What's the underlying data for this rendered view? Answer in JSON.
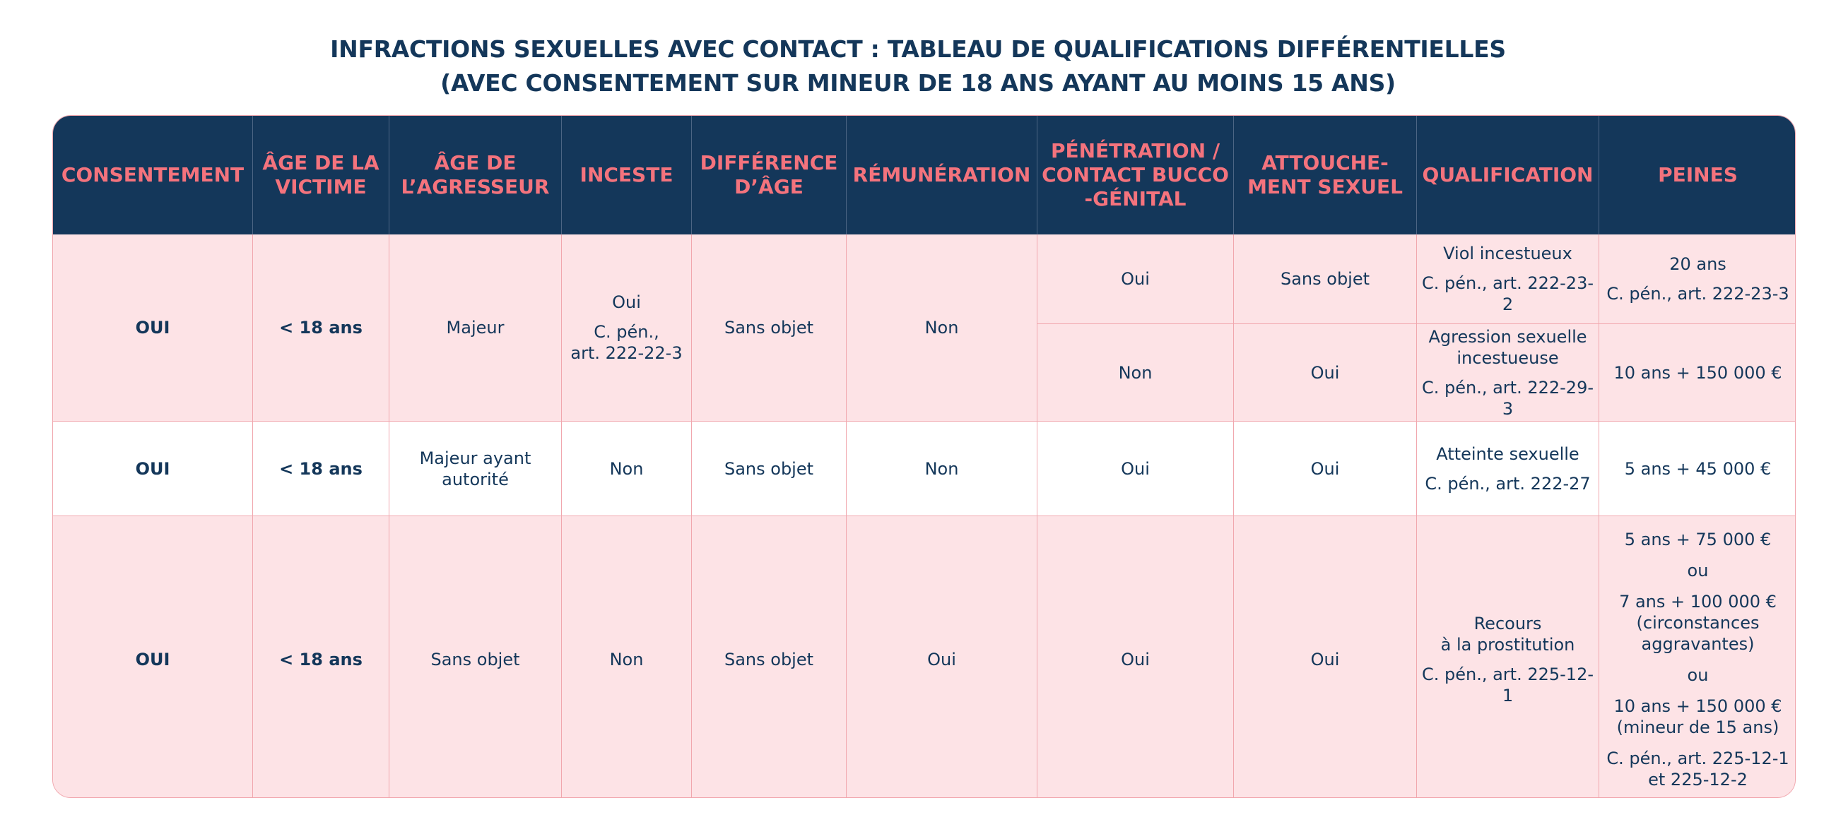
{
  "title": {
    "line1": "INFRACTIONS SEXUELLES AVEC CONTACT : TABLEAU DE QUALIFICATIONS DIFFÉRENTIELLES",
    "line2": "(AVEC CONSENTEMENT SUR MINEUR DE 18 ANS AYANT AU MOINS 15 ANS)"
  },
  "headers": [
    "CONSENTEMENT",
    "ÂGE DE LA VICTIME",
    "ÂGE DE L’AGRESSEUR",
    "INCESTE",
    "DIFFÉRENCE D’ÂGE",
    "RÉMUNÉRATION",
    "PÉNÉTRATION / CONTACT BUCCO -GÉNITAL",
    "ATTOUCHE- MENT SEXUEL",
    "QUALIFICATION",
    "PEINES"
  ],
  "rows": {
    "r1": {
      "consentement": "OUI",
      "age_victime": "< 18 ans",
      "age_agresseur": "Majeur",
      "inceste": "Oui",
      "inceste_ref_1": "C. pén.,",
      "inceste_ref_2": "art. 222-22-3",
      "difference_age": "Sans objet",
      "remuneration": "Non",
      "a": {
        "penetration": "Oui",
        "attouchement": "Sans objet",
        "qualification": "Viol incestueux",
        "qualification_ref": "C. pén., art. 222-23-2",
        "peine": "20 ans",
        "peine_ref": "C. pén., art. 222-23-3"
      },
      "b": {
        "penetration": "Non",
        "attouchement": "Oui",
        "qualification_1": "Agression sexuelle",
        "qualification_2": "incestueuse",
        "qualification_ref": "C. pén., art. 222-29-3",
        "peine": "10 ans + 150 000 €"
      }
    },
    "r2": {
      "consentement": "OUI",
      "age_victime": "< 18 ans",
      "age_agresseur_1": "Majeur ayant",
      "age_agresseur_2": "autorité",
      "inceste": "Non",
      "difference_age": "Sans objet",
      "remuneration": "Non",
      "penetration": "Oui",
      "attouchement": "Oui",
      "qualification": "Atteinte sexuelle",
      "qualification_ref": "C. pén., art. 222-27",
      "peine": "5 ans + 45 000 €"
    },
    "r3": {
      "consentement": "OUI",
      "age_victime": "< 18 ans",
      "age_agresseur": "Sans objet",
      "inceste": "Non",
      "difference_age": "Sans objet",
      "remuneration": "Oui",
      "penetration": "Oui",
      "attouchement": "Oui",
      "qualification_1": "Recours",
      "qualification_2": "à la prostitution",
      "qualification_ref": "C. pén., art. 225-12-1",
      "peine_1": "5 ans + 75 000 €",
      "ou_1": "ou",
      "peine_2a": "7 ans + 100 000 €",
      "peine_2b": "(circonstances",
      "peine_2c": "aggravantes)",
      "ou_2": "ou",
      "peine_3a": "10 ans + 150 000 €",
      "peine_3b": "(mineur de 15 ans)",
      "peine_ref_1": "C. pén., art. 225-12-1",
      "peine_ref_2": "et 225-12-2"
    }
  },
  "colors": {
    "header_bg": "#14375a",
    "header_text": "#f4737d",
    "row_pink": "#fde3e6",
    "row_white": "#ffffff",
    "border": "#f1a7ae",
    "text": "#14375a"
  }
}
